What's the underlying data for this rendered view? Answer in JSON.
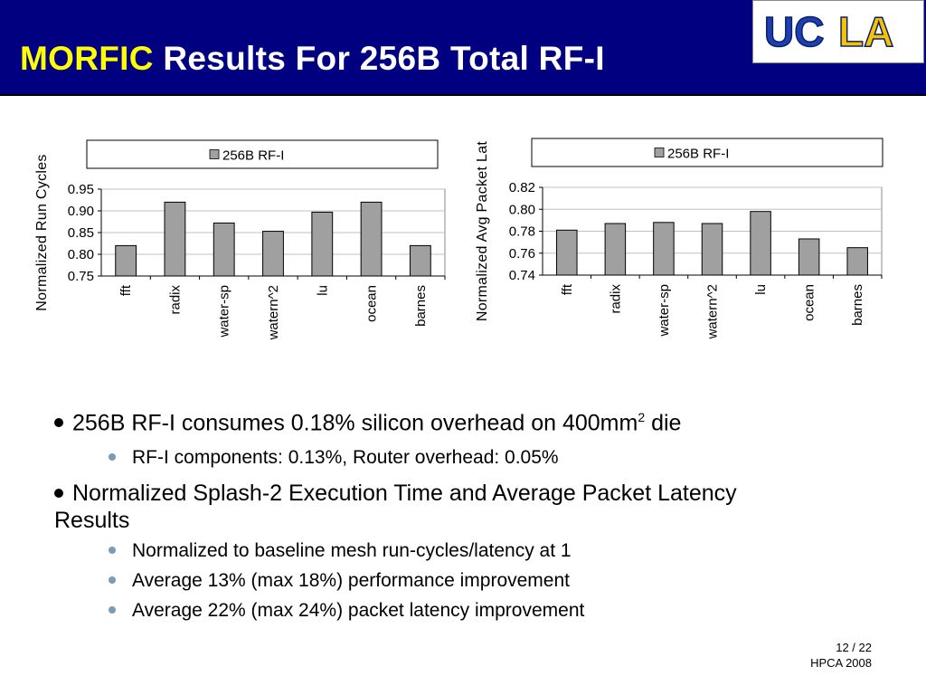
{
  "header": {
    "title_highlight": "MORFIC",
    "title_rest": " Results For 256B Total RF-I",
    "logo_uc": "UC",
    "logo_la": "LA"
  },
  "colors": {
    "header_bg": "#000080",
    "title_highlight": "#ffff00",
    "logo_blue": "#1f3fb0",
    "logo_gold": "#f5c400",
    "bar_fill": "#a0a0a0"
  },
  "chart_data": [
    {
      "type": "bar",
      "legend": "256B RF-I",
      "legend_placement": "top",
      "ylabel": "Normalized Run Cycles",
      "categories": [
        "fft",
        "radix",
        "water-sp",
        "watern^2",
        "lu",
        "ocean",
        "barnes"
      ],
      "series": [
        {
          "name": "256B RF-I",
          "values": [
            0.82,
            0.92,
            0.872,
            0.853,
            0.897,
            0.92,
            0.82
          ]
        }
      ],
      "ylim": [
        0.75,
        0.95
      ],
      "yticks": [
        "0.75",
        "0.80",
        "0.85",
        "0.90",
        "0.95"
      ],
      "grid": true
    },
    {
      "type": "bar",
      "legend": "256B RF-I",
      "legend_placement": "top",
      "ylabel": "Normalized Avg Packet Lat",
      "categories": [
        "fft",
        "radix",
        "water-sp",
        "watern^2",
        "lu",
        "ocean",
        "barnes"
      ],
      "series": [
        {
          "name": "256B RF-I",
          "values": [
            0.781,
            0.787,
            0.788,
            0.787,
            0.798,
            0.773,
            0.765
          ]
        }
      ],
      "ylim": [
        0.74,
        0.82
      ],
      "yticks": [
        "0.74",
        "0.76",
        "0.78",
        "0.80",
        "0.82"
      ],
      "grid": true
    }
  ],
  "bullets": {
    "b1_text": "256B RF-I consumes 0.18% silicon overhead on 400mm",
    "b1_sup": "2",
    "b1_tail": " die",
    "b1_sub1": "RF-I components: 0.13%, Router overhead: 0.05%",
    "b2_text": "Normalized Splash-2 Execution Time and Average Packet Latency Results",
    "b2_sub1": "Normalized to baseline mesh run-cycles/latency at 1",
    "b2_sub2": "Average 13% (max 18%) performance improvement",
    "b2_sub3": "Average 22% (max 24%) packet latency improvement"
  },
  "footer": {
    "page": "12 / 22",
    "venue": "HPCA 2008"
  }
}
